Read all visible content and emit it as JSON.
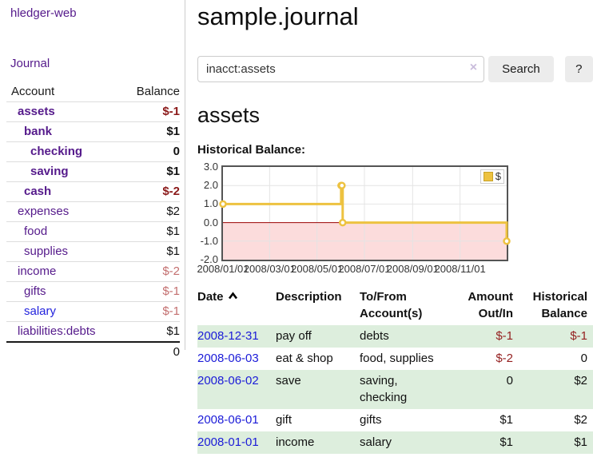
{
  "colors": {
    "link_purple": "#551a8b",
    "link_blue": "#2323dd",
    "negative_strong": "#8b1a1a",
    "negative_light": "#c36f6f",
    "negative_table": "#941f1f",
    "row_green": "#ddeedd",
    "series_gold": "#edc240",
    "chart_negative_fill": "#fcdcdc",
    "chart_zero_line": "#990000",
    "button_gray": "#ececec"
  },
  "icons": {
    "sort_ascending": "chevron-up",
    "clear_search": "x-cross"
  },
  "app": {
    "brand": "hledger-web",
    "nav_journal": "Journal"
  },
  "sidebar": {
    "col_account": "Account",
    "col_balance": "Balance",
    "rows": [
      {
        "name": "assets",
        "balance": "$-1"
      },
      {
        "name": "bank",
        "balance": "$1"
      },
      {
        "name": "checking",
        "balance": "0"
      },
      {
        "name": "saving",
        "balance": "$1"
      },
      {
        "name": "cash",
        "balance": "$-2"
      },
      {
        "name": "expenses",
        "balance": "$2"
      },
      {
        "name": "food",
        "balance": "$1"
      },
      {
        "name": "supplies",
        "balance": "$1"
      },
      {
        "name": "income",
        "balance": "$-2"
      },
      {
        "name": "gifts",
        "balance": "$-1"
      },
      {
        "name": "salary",
        "balance": "$-1"
      },
      {
        "name": "liabilities:debts",
        "balance": "$1"
      }
    ],
    "total": "0"
  },
  "main": {
    "title": "sample.journal",
    "search": {
      "value": "inacct:assets",
      "clear": "×",
      "button": "Search",
      "help": "?"
    },
    "account_heading": "assets",
    "chart_title": "Historical Balance:"
  },
  "chart_data": {
    "type": "line",
    "title": "Historical Balance",
    "series": [
      {
        "name": "$",
        "color": "#edc240",
        "step": true,
        "points": [
          [
            "2008-01-01",
            1
          ],
          [
            "2008-06-01",
            2
          ],
          [
            "2008-06-02",
            2
          ],
          [
            "2008-06-03",
            0
          ],
          [
            "2008-12-31",
            -1
          ]
        ]
      }
    ],
    "xrange": [
      "2008-01-01",
      "2008-12-31"
    ],
    "ylim": [
      -2,
      3
    ],
    "yticks": [
      3,
      2,
      1,
      0,
      -1,
      -2
    ],
    "xticks": [
      "2008/01/01",
      "2008/03/01",
      "2008/05/01",
      "2008/07/01",
      "2008/09/01",
      "2008/11/01"
    ],
    "grid": true,
    "legend_position": "top-right",
    "negative_fill": "#fcdcdc",
    "zero_line_color": "#990000"
  },
  "register": {
    "headers": {
      "date": "Date",
      "description": "Description",
      "accounts_1": "To/From",
      "accounts_2": "Account(s)",
      "amount_1": "Amount",
      "amount_2": "Out/In",
      "balance_1": "Historical",
      "balance_2": "Balance"
    },
    "rows": [
      {
        "date": "2008-12-31",
        "description": "pay off",
        "accounts": "debts",
        "amount": "$-1",
        "balance": "$-1"
      },
      {
        "date": "2008-06-03",
        "description": "eat & shop",
        "accounts": "food, supplies",
        "amount": "$-2",
        "balance": "0"
      },
      {
        "date": "2008-06-02",
        "description": "save",
        "accounts": "saving, checking",
        "amount": "0",
        "balance": "$2"
      },
      {
        "date": "2008-06-01",
        "description": "gift",
        "accounts": "gifts",
        "amount": "$1",
        "balance": "$2"
      },
      {
        "date": "2008-01-01",
        "description": "income",
        "accounts": "salary",
        "amount": "$1",
        "balance": "$1"
      }
    ]
  }
}
